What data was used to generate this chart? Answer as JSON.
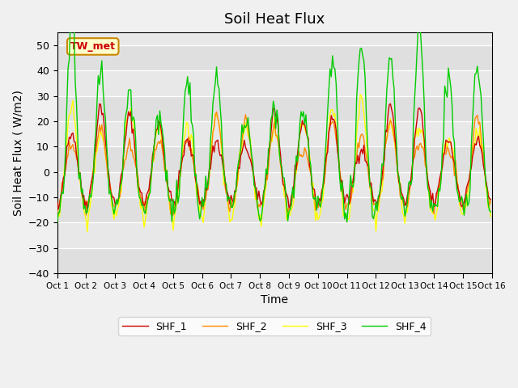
{
  "title": "Soil Heat Flux",
  "xlabel": "Time",
  "ylabel": "Soil Heat Flux ( W/m2)",
  "ylim": [
    -40,
    55
  ],
  "xlim": [
    0,
    360
  ],
  "background_color": "#f0f0f0",
  "plot_bg_color": "#e8e8e8",
  "colors": {
    "SHF_1": "#cc0000",
    "SHF_2": "#ff8800",
    "SHF_3": "#ffff00",
    "SHF_4": "#00cc00"
  },
  "legend_label": "TW_met",
  "x_ticks": [
    0,
    24,
    48,
    72,
    96,
    120,
    144,
    168,
    192,
    216,
    240,
    264,
    288,
    312,
    336,
    360
  ],
  "x_tick_labels": [
    "Oct 1",
    "Oct 2",
    "Oct 3",
    "Oct 4",
    "Oct 5",
    "Oct 6",
    "Oct 7",
    "Oct 8",
    "Oct 9",
    "Oct 10",
    "Oct 11",
    "Oct 12",
    "Oct 13",
    "Oct 14",
    "Oct 15",
    "Oct 16"
  ],
  "yticks": [
    -40,
    -30,
    -20,
    -10,
    0,
    10,
    20,
    30,
    40,
    50
  ],
  "linewidth": 1.0,
  "annotation_box_color": "#ffffcc",
  "annotation_text_color": "#cc0000",
  "annotation_edge_color": "#cc8800"
}
